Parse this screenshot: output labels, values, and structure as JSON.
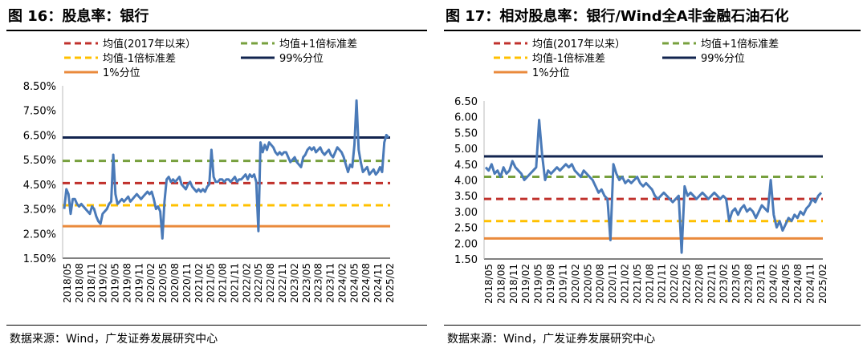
{
  "panels": [
    {
      "title": "图  16：股息率：银行",
      "source": "数据来源：Wind，广发证券发展研究中心"
    },
    {
      "title": "图  17：相对股息率：银行/Wind全A非金融石油石化",
      "source": "数据来源：Wind，广发证券发展研究中心"
    }
  ],
  "colors": {
    "series": "#4a7ab8",
    "mean": "#c0312c",
    "mean_plus_1sd": "#77a03e",
    "mean_minus_1sd": "#ffc000",
    "p99": "#12244f",
    "p1": "#ea8a3c"
  },
  "chart_data": [
    {
      "type": "line",
      "title": "",
      "xlabel": "",
      "ylabel": "",
      "ylim": [
        1.5,
        8.5
      ],
      "y_ticks": [
        "8.50%",
        "7.50%",
        "6.50%",
        "5.50%",
        "4.50%",
        "3.50%",
        "2.50%",
        "1.50%"
      ],
      "x_ticks": [
        "2018/05",
        "2018/08",
        "2018/11",
        "2019/02",
        "2019/05",
        "2019/08",
        "2019/11",
        "2020/02",
        "2020/05",
        "2020/08",
        "2020/11",
        "2021/02",
        "2021/05",
        "2021/08",
        "2021/11",
        "2022/02",
        "2022/05",
        "2022/08",
        "2022/11",
        "2023/02",
        "2023/05",
        "2023/08",
        "2023/11",
        "2024/02",
        "2024/05",
        "2024/08",
        "2024/11",
        "2025/02"
      ],
      "grid": false,
      "legend_position": "top",
      "legend": [
        {
          "label": "均值(2017年以来）",
          "style": "dashed",
          "color_key": "mean"
        },
        {
          "label": "均值+1倍标准差",
          "style": "dashed",
          "color_key": "mean_plus_1sd"
        },
        {
          "label": "均值-1倍标准差",
          "style": "dashed",
          "color_key": "mean_minus_1sd"
        },
        {
          "label": "99%分位",
          "style": "solid",
          "color_key": "p99"
        },
        {
          "label": "1%分位",
          "style": "solid",
          "color_key": "p1"
        }
      ],
      "reference_lines": {
        "mean": 4.55,
        "mean_plus_1sd": 5.45,
        "mean_minus_1sd": 3.65,
        "p99": 6.4,
        "p1": 2.8
      },
      "series": [
        {
          "values": [
            3.5,
            4.3,
            4.1,
            3.3,
            3.9,
            3.9,
            3.7,
            3.6,
            3.7,
            3.6,
            3.5,
            3.4,
            3.3,
            3.6,
            3.5,
            3.2,
            3.0,
            2.9,
            3.3,
            3.4,
            3.5,
            3.7,
            3.8,
            5.7,
            4.1,
            3.7,
            3.8,
            3.9,
            3.8,
            3.9,
            4.0,
            3.8,
            3.9,
            4.0,
            4.1,
            4.0,
            3.9,
            4.0,
            4.1,
            4.2,
            4.1,
            4.2,
            3.9,
            3.5,
            3.6,
            3.4,
            2.3,
            3.8,
            4.7,
            4.8,
            4.6,
            4.7,
            4.6,
            4.7,
            4.8,
            4.5,
            4.4,
            4.3,
            4.5,
            4.6,
            4.4,
            4.3,
            4.2,
            4.3,
            4.2,
            4.3,
            4.2,
            4.4,
            4.5,
            5.9,
            4.8,
            4.6,
            4.6,
            4.7,
            4.7,
            4.6,
            4.7,
            4.7,
            4.6,
            4.7,
            4.8,
            4.6,
            4.7,
            4.7,
            4.8,
            4.9,
            4.7,
            4.9,
            4.8,
            4.9,
            4.6,
            2.6,
            6.2,
            5.8,
            6.1,
            5.9,
            6.2,
            6.1,
            6.0,
            5.8,
            5.7,
            5.8,
            5.7,
            5.8,
            5.8,
            5.6,
            5.4,
            5.5,
            5.6,
            5.4,
            5.3,
            5.2,
            5.6,
            5.7,
            5.9,
            6.0,
            5.9,
            6.0,
            5.8,
            5.9,
            6.0,
            5.8,
            5.7,
            5.8,
            5.9,
            5.7,
            5.6,
            5.8,
            6.0,
            5.9,
            5.8,
            5.6,
            5.3,
            5.0,
            5.3,
            5.2,
            6.1,
            7.9,
            5.9,
            5.4,
            5.0,
            5.1,
            5.2,
            4.9,
            5.0,
            5.1,
            4.9,
            5.0,
            5.2,
            5.0,
            6.2,
            6.5,
            6.4
          ]
        }
      ]
    },
    {
      "type": "line",
      "title": "",
      "xlabel": "",
      "ylabel": "",
      "ylim": [
        1.5,
        6.5
      ],
      "y_ticks": [
        "6.50",
        "6.00",
        "5.50",
        "5.00",
        "4.50",
        "4.00",
        "3.50",
        "3.00",
        "2.50",
        "2.00",
        "1.50"
      ],
      "x_ticks": [
        "2018/05",
        "2018/08",
        "2018/11",
        "2019/02",
        "2019/05",
        "2019/08",
        "2019/11",
        "2020/02",
        "2020/05",
        "2020/08",
        "2020/11",
        "2021/02",
        "2021/05",
        "2021/08",
        "2021/11",
        "2022/02",
        "2022/05",
        "2022/08",
        "2022/11",
        "2023/02",
        "2023/05",
        "2023/08",
        "2023/11",
        "2024/02",
        "2024/05",
        "2024/08",
        "2024/11",
        "2025/02"
      ],
      "grid": false,
      "legend_position": "top",
      "legend": [
        {
          "label": "均值(2017年以来）",
          "style": "dashed",
          "color_key": "mean"
        },
        {
          "label": "均值+1倍标准差",
          "style": "dashed",
          "color_key": "mean_plus_1sd"
        },
        {
          "label": "均值-1倍标准差",
          "style": "dashed",
          "color_key": "mean_minus_1sd"
        },
        {
          "label": "99%分位",
          "style": "solid",
          "color_key": "p99"
        },
        {
          "label": "1%分位",
          "style": "solid",
          "color_key": "p1"
        }
      ],
      "reference_lines": {
        "mean": 3.4,
        "mean_plus_1sd": 4.1,
        "mean_minus_1sd": 2.7,
        "p99": 4.75,
        "p1": 2.15
      },
      "series": [
        {
          "values": [
            4.4,
            4.3,
            4.5,
            4.2,
            4.3,
            4.1,
            4.4,
            4.2,
            4.3,
            4.6,
            4.4,
            4.3,
            4.2,
            4.0,
            4.1,
            4.2,
            4.3,
            4.4,
            5.9,
            4.8,
            4.0,
            4.3,
            4.2,
            4.3,
            4.4,
            4.3,
            4.4,
            4.5,
            4.4,
            4.5,
            4.3,
            4.2,
            4.1,
            4.3,
            4.2,
            4.1,
            4.0,
            3.8,
            3.6,
            3.7,
            3.5,
            3.4,
            2.1,
            4.5,
            4.2,
            4.0,
            4.1,
            3.9,
            4.0,
            3.9,
            4.0,
            4.1,
            3.9,
            3.8,
            3.9,
            3.8,
            3.7,
            3.5,
            3.4,
            3.5,
            3.6,
            3.5,
            3.4,
            3.3,
            3.4,
            3.5,
            1.7,
            3.8,
            3.5,
            3.6,
            3.5,
            3.4,
            3.5,
            3.6,
            3.5,
            3.4,
            3.5,
            3.6,
            3.5,
            3.4,
            3.5,
            3.4,
            2.7,
            3.0,
            3.1,
            2.9,
            3.1,
            3.2,
            3.0,
            3.1,
            3.0,
            2.8,
            3.0,
            3.2,
            3.1,
            3.0,
            4.0,
            2.9,
            2.5,
            2.7,
            2.4,
            2.6,
            2.8,
            2.7,
            2.9,
            2.8,
            3.0,
            2.9,
            3.1,
            3.2,
            3.4,
            3.3,
            3.5,
            3.6
          ]
        }
      ]
    }
  ]
}
